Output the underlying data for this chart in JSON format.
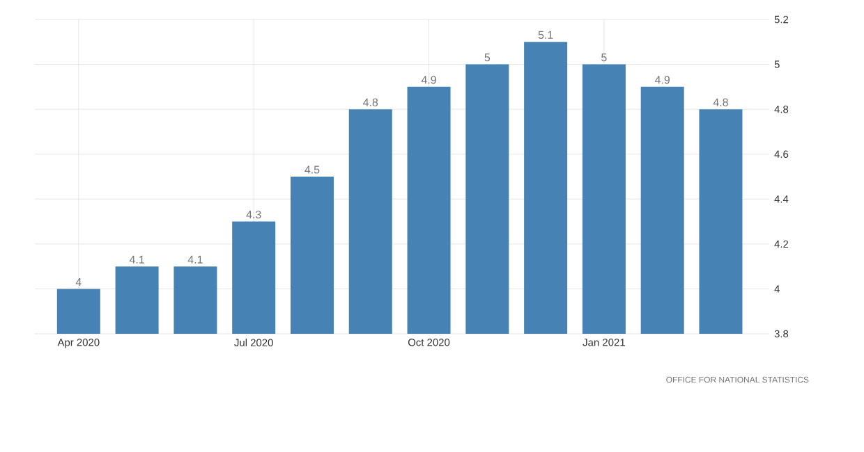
{
  "chart_data": {
    "type": "bar",
    "categories": [
      "Apr 2020",
      null,
      null,
      "Jul 2020",
      null,
      null,
      "Oct 2020",
      null,
      null,
      "Jan 2021",
      null,
      null
    ],
    "values": [
      4,
      4.1,
      4.1,
      4.3,
      4.5,
      4.8,
      4.9,
      5,
      5.1,
      5,
      4.9,
      4.8
    ],
    "color": "#4682b4",
    "ylim": [
      3.8,
      5.2
    ],
    "yticks": [
      3.8,
      4,
      4.2,
      4.4,
      4.6,
      4.8,
      5,
      5.2
    ],
    "grid": true,
    "data_labels": true,
    "annotations": [
      "OFFICE FOR NATIONAL STATISTICS"
    ]
  }
}
